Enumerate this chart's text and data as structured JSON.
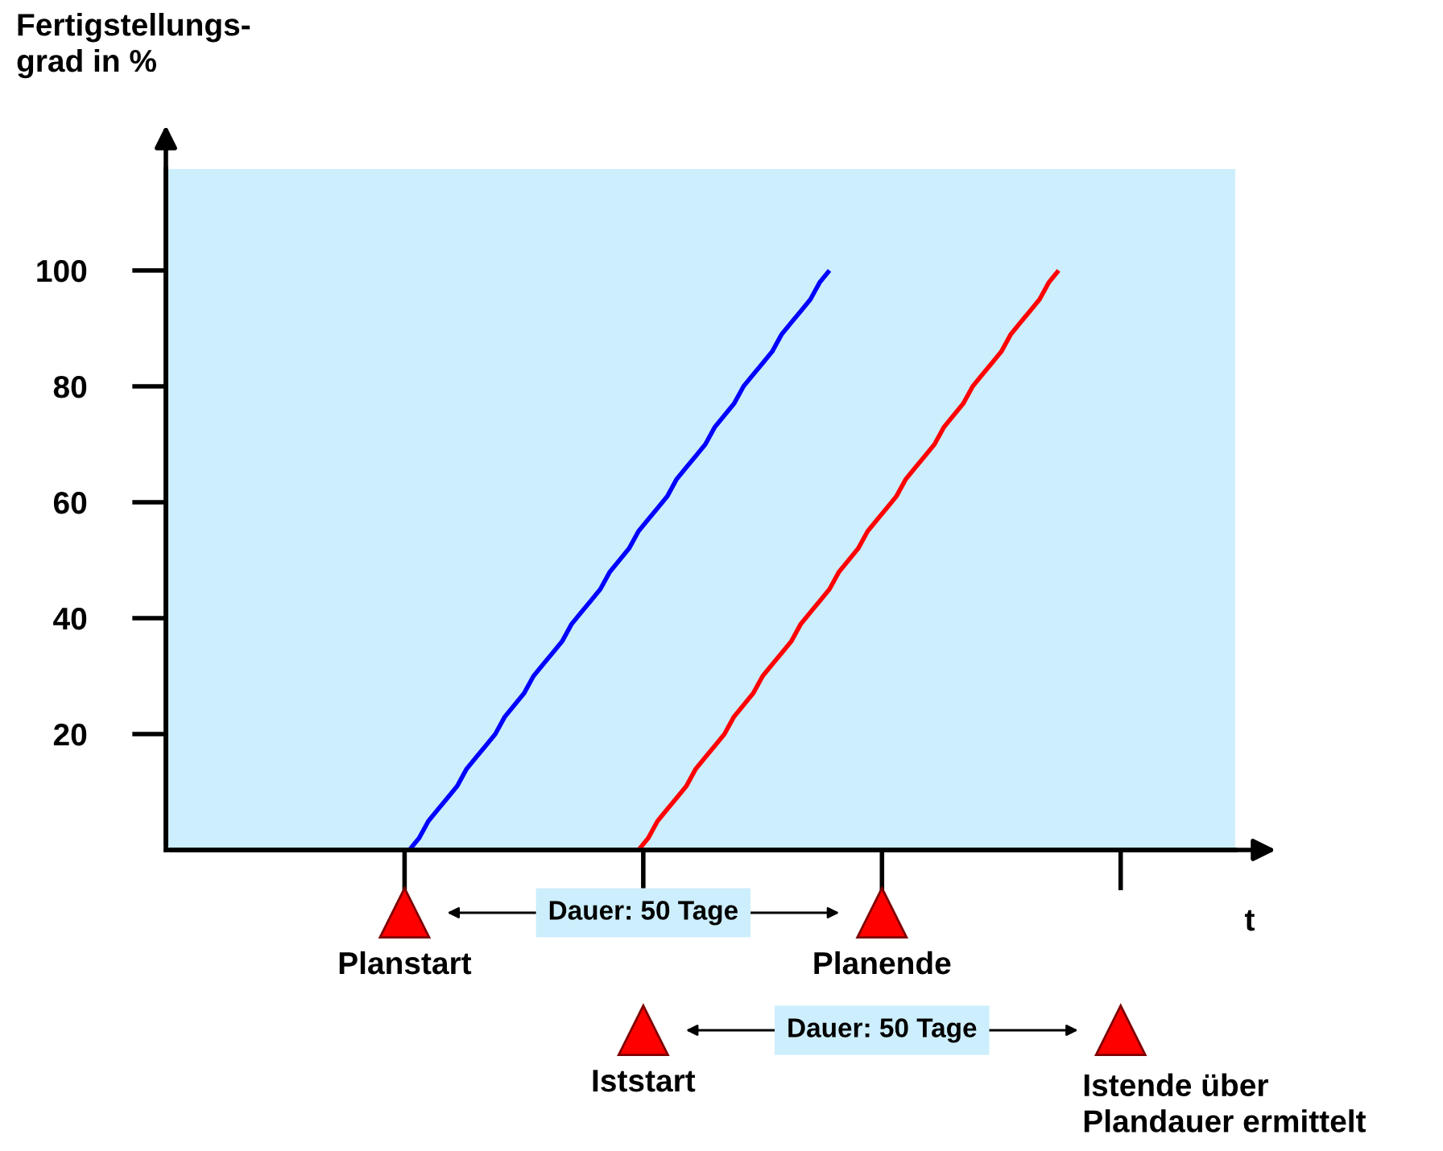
{
  "chart_data": {
    "type": "line",
    "ylabel": "Fertigstellungs-\ngrad in %",
    "xlabel": "t",
    "categories": [
      null,
      null,
      null,
      null,
      null,
      null,
      null,
      null,
      null,
      null,
      null,
      null,
      null,
      null,
      null,
      null,
      null,
      null,
      null,
      null,
      null,
      null,
      null,
      null,
      null,
      null,
      null,
      null,
      null,
      null,
      null,
      null,
      null,
      null,
      null,
      null,
      null,
      null,
      null,
      null,
      null,
      null,
      null,
      null,
      null,
      null,
      null,
      null,
      null,
      null,
      null,
      null,
      null,
      null,
      null,
      null,
      null,
      null,
      null,
      null,
      null,
      null,
      null,
      null,
      null,
      null,
      null,
      null,
      null,
      null,
      null,
      null,
      null,
      null,
      null,
      null,
      null,
      null,
      null,
      null,
      null,
      null,
      null,
      null,
      null,
      null,
      null,
      null,
      null,
      null,
      null,
      null,
      null,
      null,
      null,
      null,
      null,
      null,
      null,
      null,
      null,
      null,
      null,
      null,
      null,
      null,
      null,
      null,
      null,
      null,
      null,
      null
    ],
    "series": [
      {
        "color": "#0000ff",
        "values": [
          null,
          null,
          null,
          null,
          null,
          null,
          null,
          null,
          null,
          null,
          null,
          null,
          null,
          null,
          null,
          null,
          null,
          null,
          null,
          null,
          null,
          null,
          null,
          null,
          null,
          0,
          2,
          5,
          7,
          9,
          11,
          14,
          16,
          18,
          20,
          23,
          25,
          27,
          30,
          32,
          34,
          36,
          39,
          41,
          43,
          45,
          48,
          50,
          52,
          55,
          57,
          59,
          61,
          64,
          66,
          68,
          70,
          73,
          75,
          77,
          80,
          82,
          84,
          86,
          89,
          91,
          93,
          95,
          98,
          100,
          null,
          null,
          null,
          null,
          null,
          null,
          null,
          null,
          null,
          null,
          null,
          null,
          null,
          null,
          null,
          null,
          null,
          null,
          null,
          null,
          null,
          null,
          null,
          null,
          null,
          null,
          null,
          null,
          null,
          null,
          null,
          null,
          null,
          null,
          null,
          null,
          null,
          null,
          null,
          null,
          null,
          null
        ]
      },
      {
        "color": "#ff0000",
        "values": [
          null,
          null,
          null,
          null,
          null,
          null,
          null,
          null,
          null,
          null,
          null,
          null,
          null,
          null,
          null,
          null,
          null,
          null,
          null,
          null,
          null,
          null,
          null,
          null,
          null,
          null,
          null,
          null,
          null,
          null,
          null,
          null,
          null,
          null,
          null,
          null,
          null,
          null,
          null,
          null,
          null,
          null,
          null,
          null,
          null,
          null,
          null,
          null,
          null,
          0,
          2,
          5,
          7,
          9,
          11,
          14,
          16,
          18,
          20,
          23,
          25,
          27,
          30,
          32,
          34,
          36,
          39,
          41,
          43,
          45,
          48,
          50,
          52,
          55,
          57,
          59,
          61,
          64,
          66,
          68,
          70,
          73,
          75,
          77,
          80,
          82,
          84,
          86,
          89,
          91,
          93,
          95,
          98,
          100,
          null,
          null,
          null,
          null,
          null,
          null,
          null,
          null,
          null,
          null,
          null,
          null,
          null,
          null,
          null,
          null,
          null,
          null
        ]
      }
    ],
    "ylim": [
      0,
      117.5
    ],
    "yticks": [
      20,
      40,
      60,
      80,
      100
    ],
    "grid": false,
    "legend": false,
    "marker": "none",
    "line_style": "solid",
    "annotations": [
      "Planstart",
      "Planende",
      "Dauer: 50 Tage",
      "Iststart",
      "Istende über\nPlandauer ermittelt",
      "Dauer: 50 Tage"
    ]
  }
}
